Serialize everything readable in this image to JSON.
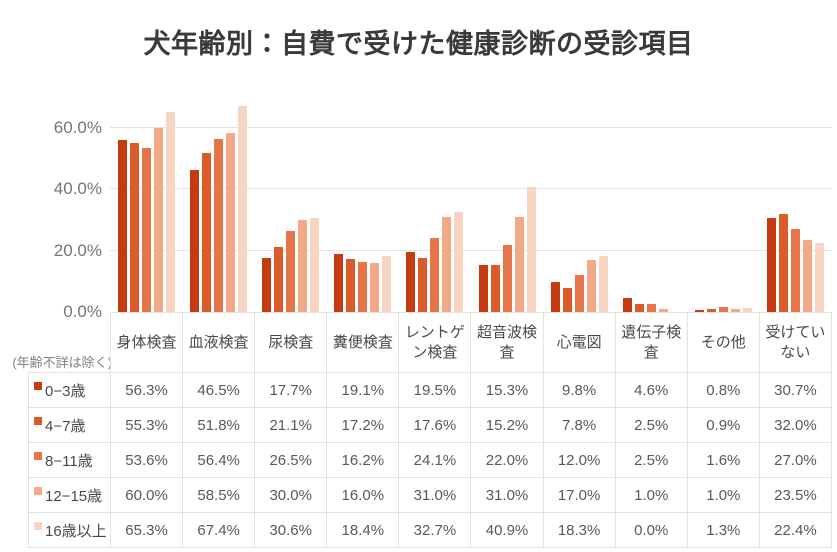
{
  "title": "犬年齢別：自費で受けた健康診断の受診項目",
  "note": "(年齢不詳は除く)",
  "colors": {
    "series": [
      "#c63a0f",
      "#da5c2b",
      "#e6764a",
      "#f2a987",
      "#f8d5c2"
    ],
    "grid": "#e4e4e4",
    "axis_text": "#757575",
    "title_text": "#3a3a3a",
    "table_border": "#e2e2e2",
    "table_text": "#595959"
  },
  "chart_data": {
    "type": "bar",
    "title": "犬年齢別：自費で受けた健康診断の受診項目",
    "categories": [
      "身体検査",
      "血液検査",
      "尿検査",
      "糞便検査",
      "レントゲン検査",
      "超音波検査",
      "心電図",
      "遺伝子検査",
      "その他",
      "受けていない"
    ],
    "series": [
      {
        "name": "0−3歳",
        "values": [
          56.3,
          46.5,
          17.7,
          19.1,
          19.5,
          15.3,
          9.8,
          4.6,
          0.8,
          30.7
        ]
      },
      {
        "name": "4−7歳",
        "values": [
          55.3,
          51.8,
          21.1,
          17.2,
          17.6,
          15.2,
          7.8,
          2.5,
          0.9,
          32.0
        ]
      },
      {
        "name": "8−11歳",
        "values": [
          53.6,
          56.4,
          26.5,
          16.2,
          24.1,
          22.0,
          12.0,
          2.5,
          1.6,
          27.0
        ]
      },
      {
        "name": "12−15歳",
        "values": [
          60.0,
          58.5,
          30.0,
          16.0,
          31.0,
          31.0,
          17.0,
          1.0,
          1.0,
          23.5
        ]
      },
      {
        "name": "16歳以上",
        "values": [
          65.3,
          67.4,
          30.6,
          18.4,
          32.7,
          40.9,
          18.3,
          0.0,
          1.3,
          22.4
        ]
      }
    ],
    "yticks": [
      "0.0%",
      "20.0%",
      "40.0%",
      "60.0%"
    ],
    "ytick_values": [
      0,
      20,
      40,
      60
    ],
    "ylim": [
      0,
      73.8
    ],
    "grid": "horizontal",
    "legend_position": "table-row-labels",
    "value_suffix": "%"
  }
}
